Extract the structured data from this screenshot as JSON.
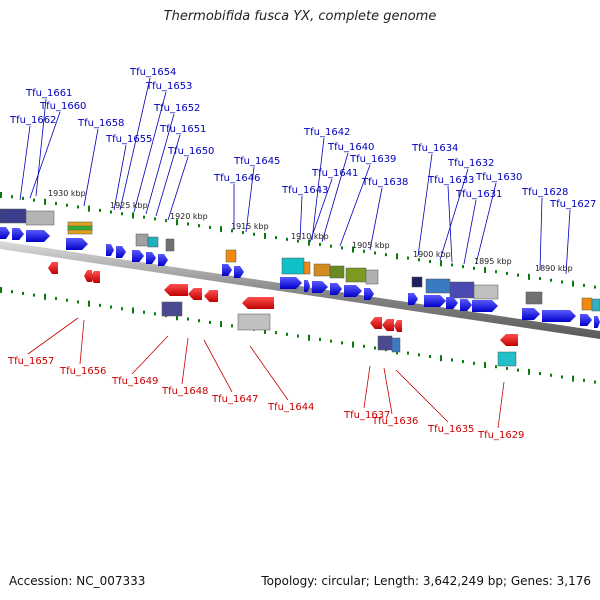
{
  "title": "Thermobifida fusca YX, complete genome",
  "footer": {
    "accession": "Accession: NC_007333",
    "summary": "Topology: circular; Length: 3,642,249 bp; Genes: 3,176"
  },
  "colors": {
    "forward_gene": "#1010e0",
    "reverse_gene": "#e00000",
    "forward_label": "#0000b8",
    "reverse_label": "#c80000",
    "backbone": "#888888",
    "ticks": "#0a7a0a"
  },
  "ticks": [
    "1930 kbp",
    "1925 kbp",
    "1920 kbp",
    "1915 kbp",
    "1910 kbp",
    "1905 kbp",
    "1900 kbp",
    "1895 kbp",
    "1890 kbp"
  ],
  "forward_labels": [
    "Tfu_1661",
    "Tfu_1662",
    "Tfu_1660",
    "Tfu_1658",
    "Tfu_1654",
    "Tfu_1653",
    "Tfu_1655",
    "Tfu_1652",
    "Tfu_1651",
    "Tfu_1650",
    "Tfu_1645",
    "Tfu_1646",
    "Tfu_1642",
    "Tfu_1640",
    "Tfu_1641",
    "Tfu_1643",
    "Tfu_1639",
    "Tfu_1638",
    "Tfu_1634",
    "Tfu_1632",
    "Tfu_1633",
    "Tfu_1630",
    "Tfu_1631",
    "Tfu_1628",
    "Tfu_1627"
  ],
  "reverse_labels": [
    "Tfu_1657",
    "Tfu_1656",
    "Tfu_1649",
    "Tfu_1648",
    "Tfu_1647",
    "Tfu_1644",
    "Tfu_1637",
    "Tfu_1636",
    "Tfu_1635",
    "Tfu_1629"
  ]
}
